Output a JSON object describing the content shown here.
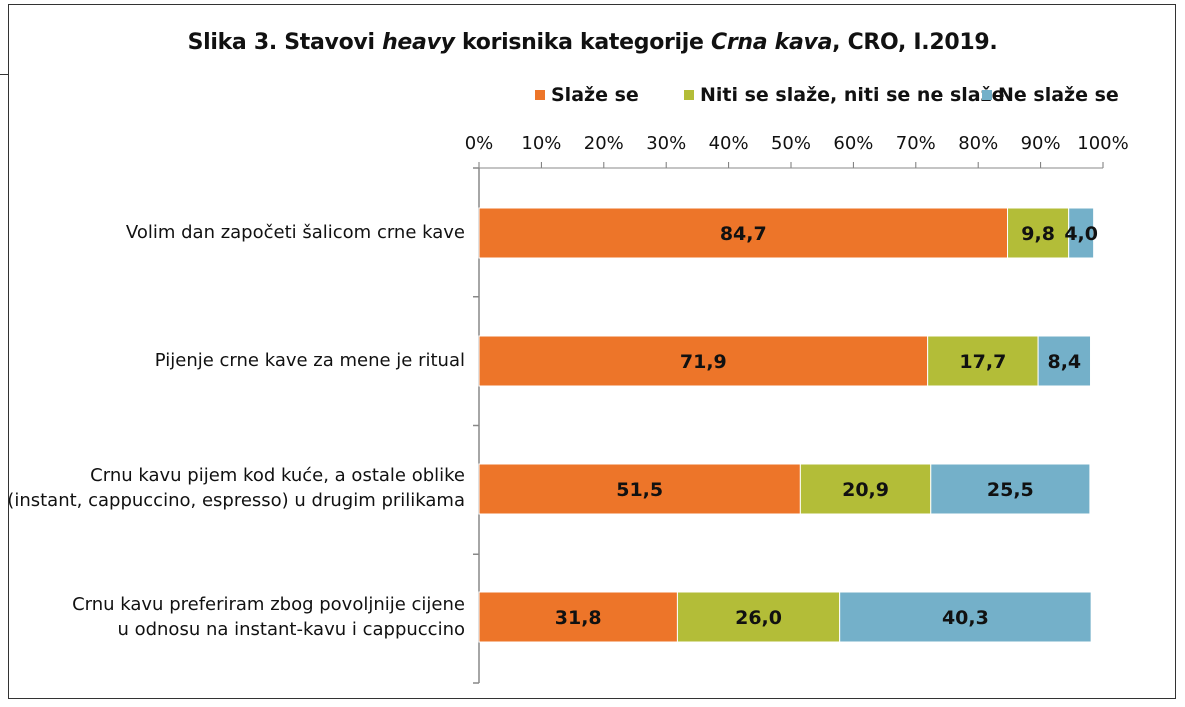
{
  "chart_data": {
    "type": "bar",
    "orientation": "horizontal",
    "stacked": "percent",
    "title": {
      "part1": "Slika 3. Stavovi ",
      "part2": "heavy",
      "part3": " korisnika kategorije ",
      "part4": "Crna kava",
      "part5": ", CRO, I.2019."
    },
    "categories": [
      [
        "Volim dan započeti šalicom crne kave"
      ],
      [
        "Pijenje crne kave za mene je ritual"
      ],
      [
        "Crnu kavu pijem kod kuće, a ostale oblike",
        "(instant, cappuccino, espresso) u drugim prilikama"
      ],
      [
        "Crnu kavu preferiram zbog povoljnije cijene",
        "u odnosu na instant-kavu i cappuccino"
      ]
    ],
    "series": [
      {
        "name": "Slaže se",
        "color": "#ed7529",
        "values": [
          84.7,
          71.9,
          51.5,
          31.8
        ],
        "labels": [
          "84,7",
          "71,9",
          "51,5",
          "31,8"
        ]
      },
      {
        "name": "Niti se slaže, niti se ne slaže",
        "color": "#b3bd38",
        "values": [
          9.8,
          17.7,
          20.9,
          26.0
        ],
        "labels": [
          "9,8",
          "17,7",
          "20,9",
          "26,0"
        ]
      },
      {
        "name": "Ne slaže se",
        "color": "#74b0c9",
        "values": [
          4.0,
          8.4,
          25.5,
          40.3
        ],
        "labels": [
          "4,0",
          "8,4",
          "25,5",
          "40,3"
        ]
      }
    ],
    "xlim": [
      0,
      100
    ],
    "xticks": [
      "0%",
      "10%",
      "20%",
      "30%",
      "40%",
      "50%",
      "60%",
      "70%",
      "80%",
      "90%",
      "100%"
    ],
    "legend_position": "top",
    "grid": false
  }
}
